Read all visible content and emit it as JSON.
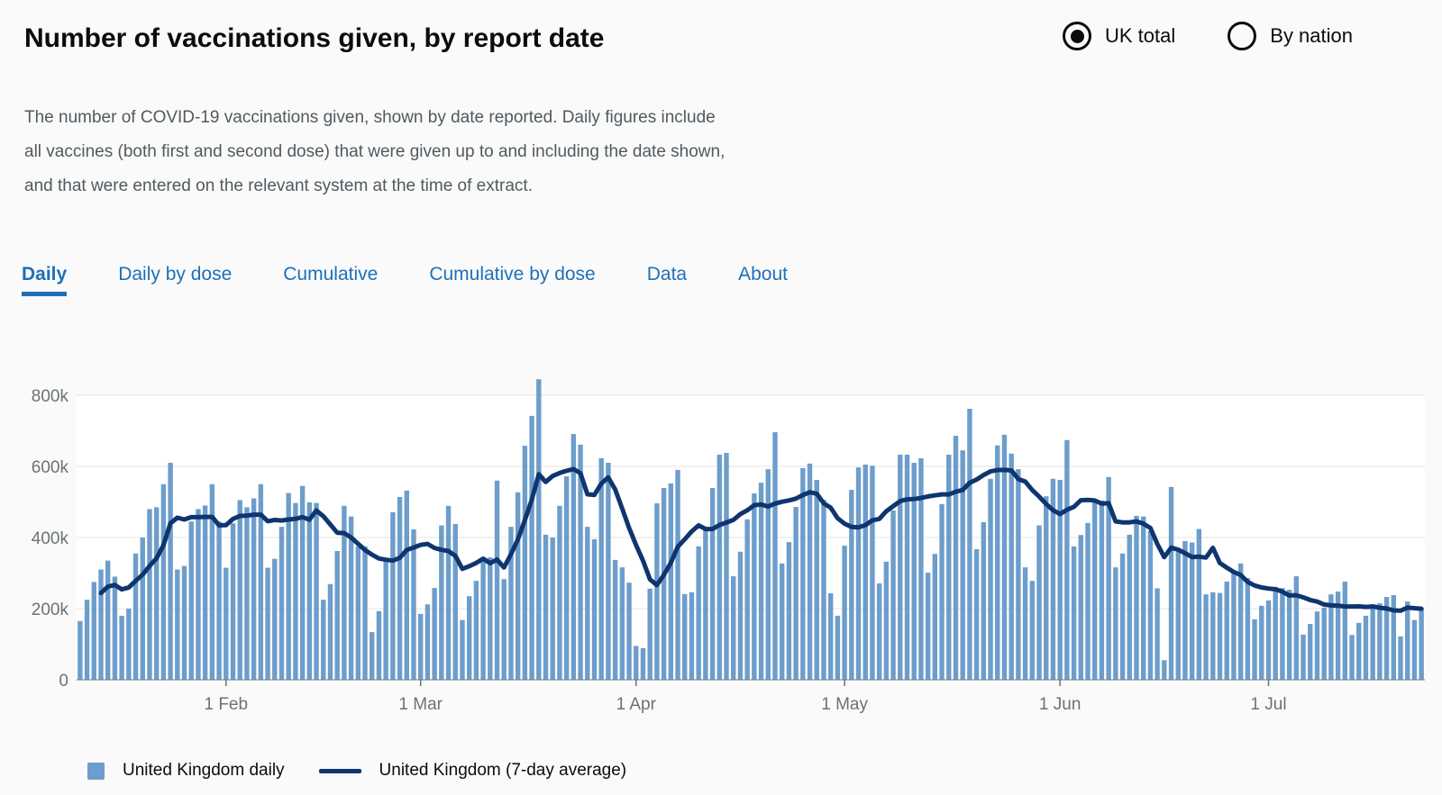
{
  "header": {
    "title": "Number of vaccinations given, by report date",
    "radios": [
      {
        "label": "UK total",
        "selected": true
      },
      {
        "label": "By nation",
        "selected": false
      }
    ]
  },
  "description": "The number of COVID-19 vaccinations given, shown by date reported. Daily figures include all vaccines (both first and second dose) that were given up to and including the date shown, and that were entered on the relevant system at the time of extract.",
  "tabs": [
    {
      "label": "Daily",
      "active": true
    },
    {
      "label": "Daily by dose",
      "active": false
    },
    {
      "label": "Cumulative",
      "active": false
    },
    {
      "label": "Cumulative by dose",
      "active": false
    },
    {
      "label": "Data",
      "active": false
    },
    {
      "label": "About",
      "active": false
    }
  ],
  "legend": [
    {
      "type": "bar",
      "label": "United Kingdom daily",
      "color": "#6d9dcb"
    },
    {
      "type": "line",
      "label": "United Kingdom (7-day average)",
      "color": "#0e356e"
    }
  ],
  "colors": {
    "bar": "#6d9dcb",
    "line": "#0e356e",
    "grid": "#e4e4e4",
    "axis_line": "#747b7f",
    "axis_text": "#6b7276",
    "plot_bg": "#ffffff",
    "page_bg": "#fafafa",
    "accent_blue": "#1d70b8"
  },
  "chart_data": {
    "type": "bar",
    "title": "Number of vaccinations given, by report date",
    "xlabel": "",
    "ylabel": "",
    "grid": true,
    "legend_position": "bottom",
    "ylim": [
      0,
      880000
    ],
    "y_ticks": [
      {
        "label": "0",
        "value": 0
      },
      {
        "label": "200k",
        "value": 200000
      },
      {
        "label": "400k",
        "value": 400000
      },
      {
        "label": "600k",
        "value": 600000
      },
      {
        "label": "800k",
        "value": 800000
      }
    ],
    "x_ticks": [
      {
        "label": "1 Feb",
        "day_index": 21
      },
      {
        "label": "1 Mar",
        "day_index": 49
      },
      {
        "label": "1 Apr",
        "day_index": 80
      },
      {
        "label": "1 May",
        "day_index": 110
      },
      {
        "label": "1 Jun",
        "day_index": 141
      },
      {
        "label": "1 Jul",
        "day_index": 171
      }
    ],
    "series": [
      {
        "name": "United Kingdom daily",
        "type": "bar",
        "units": "doses, thousands",
        "values_k": [
          165,
          225,
          275,
          310,
          335,
          290,
          180,
          200,
          355,
          400,
          480,
          485,
          550,
          610,
          310,
          320,
          445,
          480,
          490,
          550,
          445,
          315,
          440,
          505,
          485,
          510,
          550,
          315,
          340,
          430,
          525,
          497,
          545,
          499,
          497,
          225,
          269,
          362,
          489,
          459,
          375,
          375,
          134,
          193,
          337,
          471,
          514,
          532,
          423,
          185,
          212,
          258,
          434,
          489,
          438,
          168,
          235,
          278,
          342,
          344,
          560,
          283,
          430,
          527,
          658,
          742,
          845,
          408,
          400,
          489,
          572,
          691,
          661,
          430,
          395,
          623,
          610,
          337,
          316,
          273,
          95,
          89,
          256,
          496,
          539,
          552,
          590,
          241,
          246,
          375,
          423,
          539,
          633,
          638,
          291,
          360,
          451,
          524,
          554,
          592,
          696,
          327,
          387,
          486,
          595,
          608,
          562,
          506,
          243,
          180,
          377,
          534,
          597,
          605,
          602,
          271,
          332,
          476,
          633,
          633,
          610,
          623,
          301,
          354,
          494,
          633,
          686,
          645,
          762,
          367,
          443,
          565,
          659,
          689,
          636,
          592,
          316,
          278,
          434,
          516,
          565,
          562,
          674,
          375,
          407,
          441,
          504,
          504,
          570,
          316,
          355,
          408,
          461,
          459,
          418,
          257,
          55,
          542,
          368,
          390,
          386,
          424,
          240,
          246,
          244,
          276,
          306,
          327,
          286,
          170,
          208,
          223,
          261,
          258,
          253,
          291,
          127,
          157,
          192,
          203,
          240,
          248,
          276,
          126,
          160,
          180,
          212,
          215,
          233,
          238,
          122,
          220,
          168,
          202
        ]
      },
      {
        "name": "United Kingdom (7-day average)",
        "type": "line",
        "derived": "7-day trailing average of the daily series"
      }
    ]
  }
}
